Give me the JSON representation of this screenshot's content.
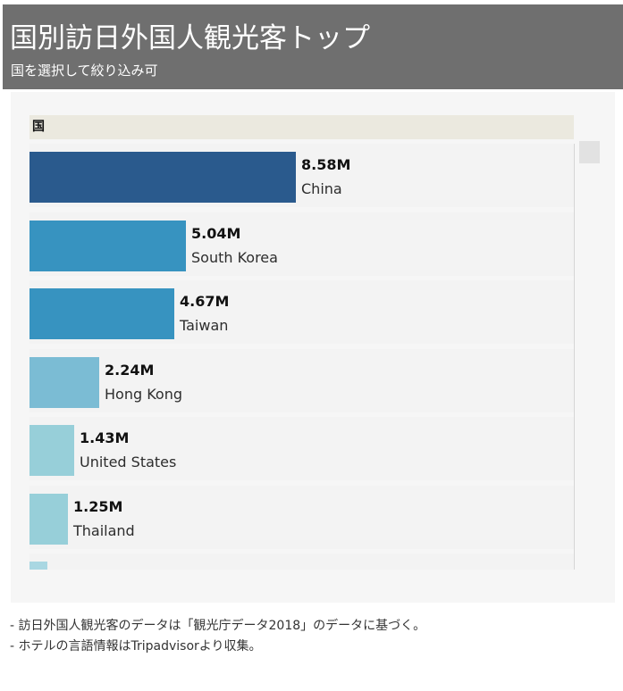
{
  "header": {
    "title": "国別訪日外国人観光客トップ",
    "subtitle": "国を選択して絞り込み可"
  },
  "table_header": "国",
  "footnotes": [
    "- 訪日外国人観光客のデータは「観光庁データ2018」のデータに基づく。",
    "- ホテルの言語情報はTripadvisorより収集。"
  ],
  "chart_data": {
    "type": "bar",
    "orientation": "horizontal",
    "categories": [
      "China",
      "South Korea",
      "Taiwan",
      "Hong Kong",
      "United States",
      "Thailand",
      ""
    ],
    "values": [
      8.58,
      5.04,
      4.67,
      2.24,
      1.43,
      1.25,
      0.57
    ],
    "value_labels": [
      "8.58M",
      "5.04M",
      "4.67M",
      "2.24M",
      "1.43M",
      "1.25M",
      ""
    ],
    "colors": [
      "#2a5a8d",
      "#3793c0",
      "#3793c0",
      "#7bbcd4",
      "#97cfd9",
      "#97cfd9",
      "#a9d7e2"
    ],
    "xlim": [
      0,
      8.58
    ],
    "grid": false
  }
}
